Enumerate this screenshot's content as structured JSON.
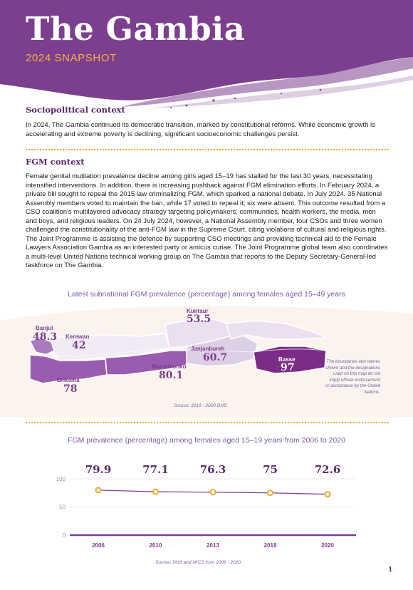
{
  "header": {
    "title": "The Gambia",
    "subtitle": "2024 SNAPSHOT"
  },
  "sociopolitical": {
    "heading": "Sociopolitical context",
    "text": "In 2024, The Gambia continued its democratic transition, marked by constitutional reforms. While economic growth is accelerating and extreme poverty is declining, significant socioeconomic challenges persist."
  },
  "fgm": {
    "heading": "FGM context",
    "text": "Female genital mutilation prevalence decline among girls aged 15–19 has stalled for the last 30 years, necessitating intensified interventions. In addition, there is increasing pushback against FGM elimination efforts. In February 2024, a private bill sought to repeal the 2015 law criminalizing FGM, which sparked a national debate. In July 2024, 35 National Assembly members voted to maintain the ban, while 17 voted to repeal it; six were absent. This outcome resulted from a CSO coalition's multilayered advocacy strategy targeting policymakers, communities, health workers, the media, men and boys, and religious leaders. On 24 July 2024, however, a National Assembly member, four CSOs and three women challenged the constitutionality of the anti-FGM law in the Supreme Court, citing violations of cultural and religious rights. The Joint Programme is assisting the defence by supporting CSO meetings and providing technical aid to the Female Lawyers Association Gambia as an interested party or amicus curiae. The Joint Programme global team also coordinates a multi-level United Nations technical working group on The Gambia that reports to the Deputy Secretary-General-led taskforce on The Gambia."
  },
  "map": {
    "title": "Latest subnational FGM prevalence (percentage) among females aged 15–49 years",
    "regions": [
      {
        "name": "Banjul",
        "value": "48.3"
      },
      {
        "name": "Kerewan",
        "value": "42"
      },
      {
        "name": "Brikama",
        "value": "78"
      },
      {
        "name": "Mansakonko",
        "value": "80.1"
      },
      {
        "name": "Kuntaur",
        "value": "53.5"
      },
      {
        "name": "Janjanbureh",
        "value": "60.7"
      },
      {
        "name": "Basse",
        "value": "97"
      }
    ],
    "colors": {
      "low": "#efe8f4",
      "mid": "#a87bbf",
      "high": "#7b2d85"
    },
    "source": "Source: 2019 - 2020 DHS",
    "disclaimer": "The boundaries and names shown and the designations used on this map do not imply official endorsement or acceptance by the United Nations."
  },
  "chart_data": {
    "type": "line",
    "title": "FGM prevalence (percentage) among females aged 15–19 years from 2006 to 2020",
    "x": [
      "2006",
      "2010",
      "2013",
      "2018",
      "2020"
    ],
    "series": [
      {
        "values": [
          79.9,
          77.1,
          76.3,
          75,
          72.6
        ]
      }
    ],
    "value_labels": [
      "79.9",
      "77.1",
      "76.3",
      "75",
      "72.6"
    ],
    "y_ticks": [
      "0",
      "50",
      "100"
    ],
    "ylim": [
      0,
      100
    ],
    "source": "Source: DHS and MICS from 2006 - 2020.",
    "colors": {
      "line": "#7b3f8e",
      "marker": "#f0a830",
      "axis": "#7b3f8e",
      "label": "#5b2a6e"
    }
  },
  "page_number": "1"
}
